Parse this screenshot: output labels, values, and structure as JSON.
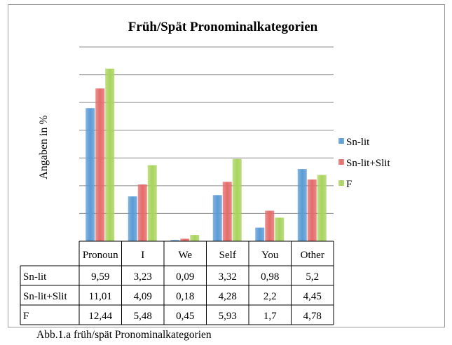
{
  "chart_data": {
    "type": "bar",
    "title": "Früh/Spät Pronominalkategorien",
    "xlabel": "",
    "ylabel": "Angaben in %",
    "ylim": [
      0,
      14
    ],
    "grid": true,
    "legend_position": "right",
    "categories": [
      "Pronoun",
      "I",
      "We",
      "Self",
      "You",
      "Other"
    ],
    "series": [
      {
        "name": "Sn-lit",
        "color": "#5b9bd5",
        "values": [
          9.59,
          3.23,
          0.09,
          3.32,
          0.98,
          5.2
        ],
        "labels": [
          "9,59",
          "3,23",
          "0,09",
          "3,32",
          "0,98",
          "5,2"
        ]
      },
      {
        "name": "Sn-lit+Slit",
        "color": "#e46c6a",
        "values": [
          11.01,
          4.09,
          0.18,
          4.28,
          2.2,
          4.45
        ],
        "labels": [
          "11,01",
          "4,09",
          "0,18",
          "4,28",
          "2,2",
          "4,45"
        ]
      },
      {
        "name": "F",
        "color": "#a9d45e",
        "values": [
          12.44,
          5.48,
          0.45,
          5.93,
          1.7,
          4.78
        ],
        "labels": [
          "12,44",
          "5,48",
          "0,45",
          "5,93",
          "1,7",
          "4,78"
        ]
      }
    ]
  },
  "caption": "Abb.1.a früh/spät Pronominalkategorien"
}
